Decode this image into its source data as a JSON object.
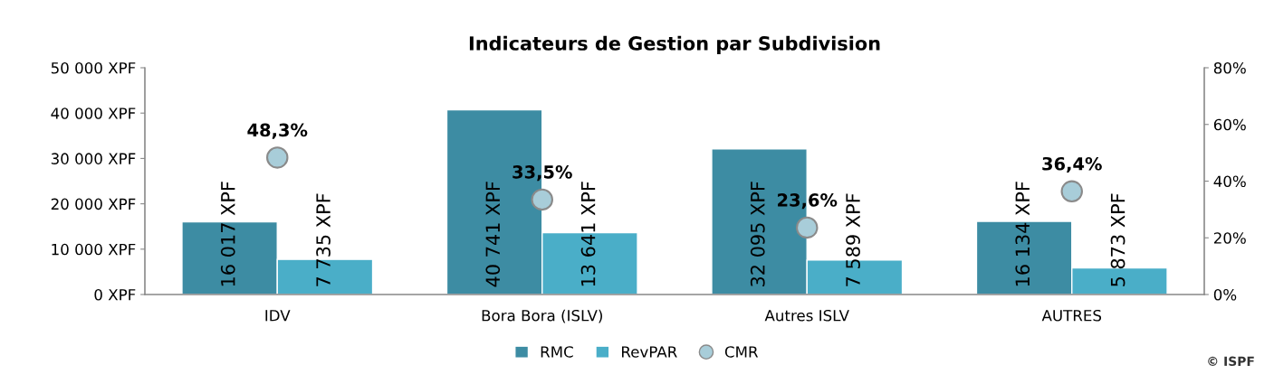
{
  "chart_data": {
    "type": "bar",
    "title": "Indicateurs de Gestion par Subdivision",
    "categories": [
      "IDV",
      "Bora Bora (ISLV)",
      "Autres ISLV",
      "AUTRES"
    ],
    "series": [
      {
        "name": "RMC",
        "color": "#3d8ca3",
        "values": [
          16017,
          40741,
          32095,
          16134
        ],
        "value_labels": [
          "16 017 XPF",
          "40 741 XPF",
          "32 095 XPF",
          "16 134 XPF"
        ]
      },
      {
        "name": "RevPAR",
        "color": "#4aaec8",
        "values": [
          7735,
          13641,
          7589,
          5873
        ],
        "value_labels": [
          "7 735 XPF",
          "13 641 XPF",
          "7 589 XPF",
          "5 873 XPF"
        ]
      },
      {
        "name": "CMR",
        "type": "scatter",
        "axis": "y2",
        "color": "#a8cdd9",
        "values": [
          48.3,
          33.5,
          23.6,
          36.4
        ],
        "value_labels": [
          "48,3%",
          "33,5%",
          "23,6%",
          "36,4%"
        ]
      }
    ],
    "ylim": [
      0,
      50000
    ],
    "yticks": [
      {
        "value": 0,
        "label": "0 XPF"
      },
      {
        "value": 10000,
        "label": "10 000 XPF"
      },
      {
        "value": 20000,
        "label": "20 000 XPF"
      },
      {
        "value": 30000,
        "label": "30 000 XPF"
      },
      {
        "value": 40000,
        "label": "40 000 XPF"
      },
      {
        "value": 50000,
        "label": "50 000 XPF"
      }
    ],
    "y2lim": [
      0,
      80
    ],
    "y2ticks": [
      {
        "value": 0,
        "label": "0%"
      },
      {
        "value": 20,
        "label": "20%"
      },
      {
        "value": 40,
        "label": "40%"
      },
      {
        "value": 60,
        "label": "60%"
      },
      {
        "value": 80,
        "label": "80%"
      }
    ],
    "marker": "circle",
    "grid": false,
    "legend": "bottom",
    "annotations": [
      "© ISPF"
    ]
  }
}
